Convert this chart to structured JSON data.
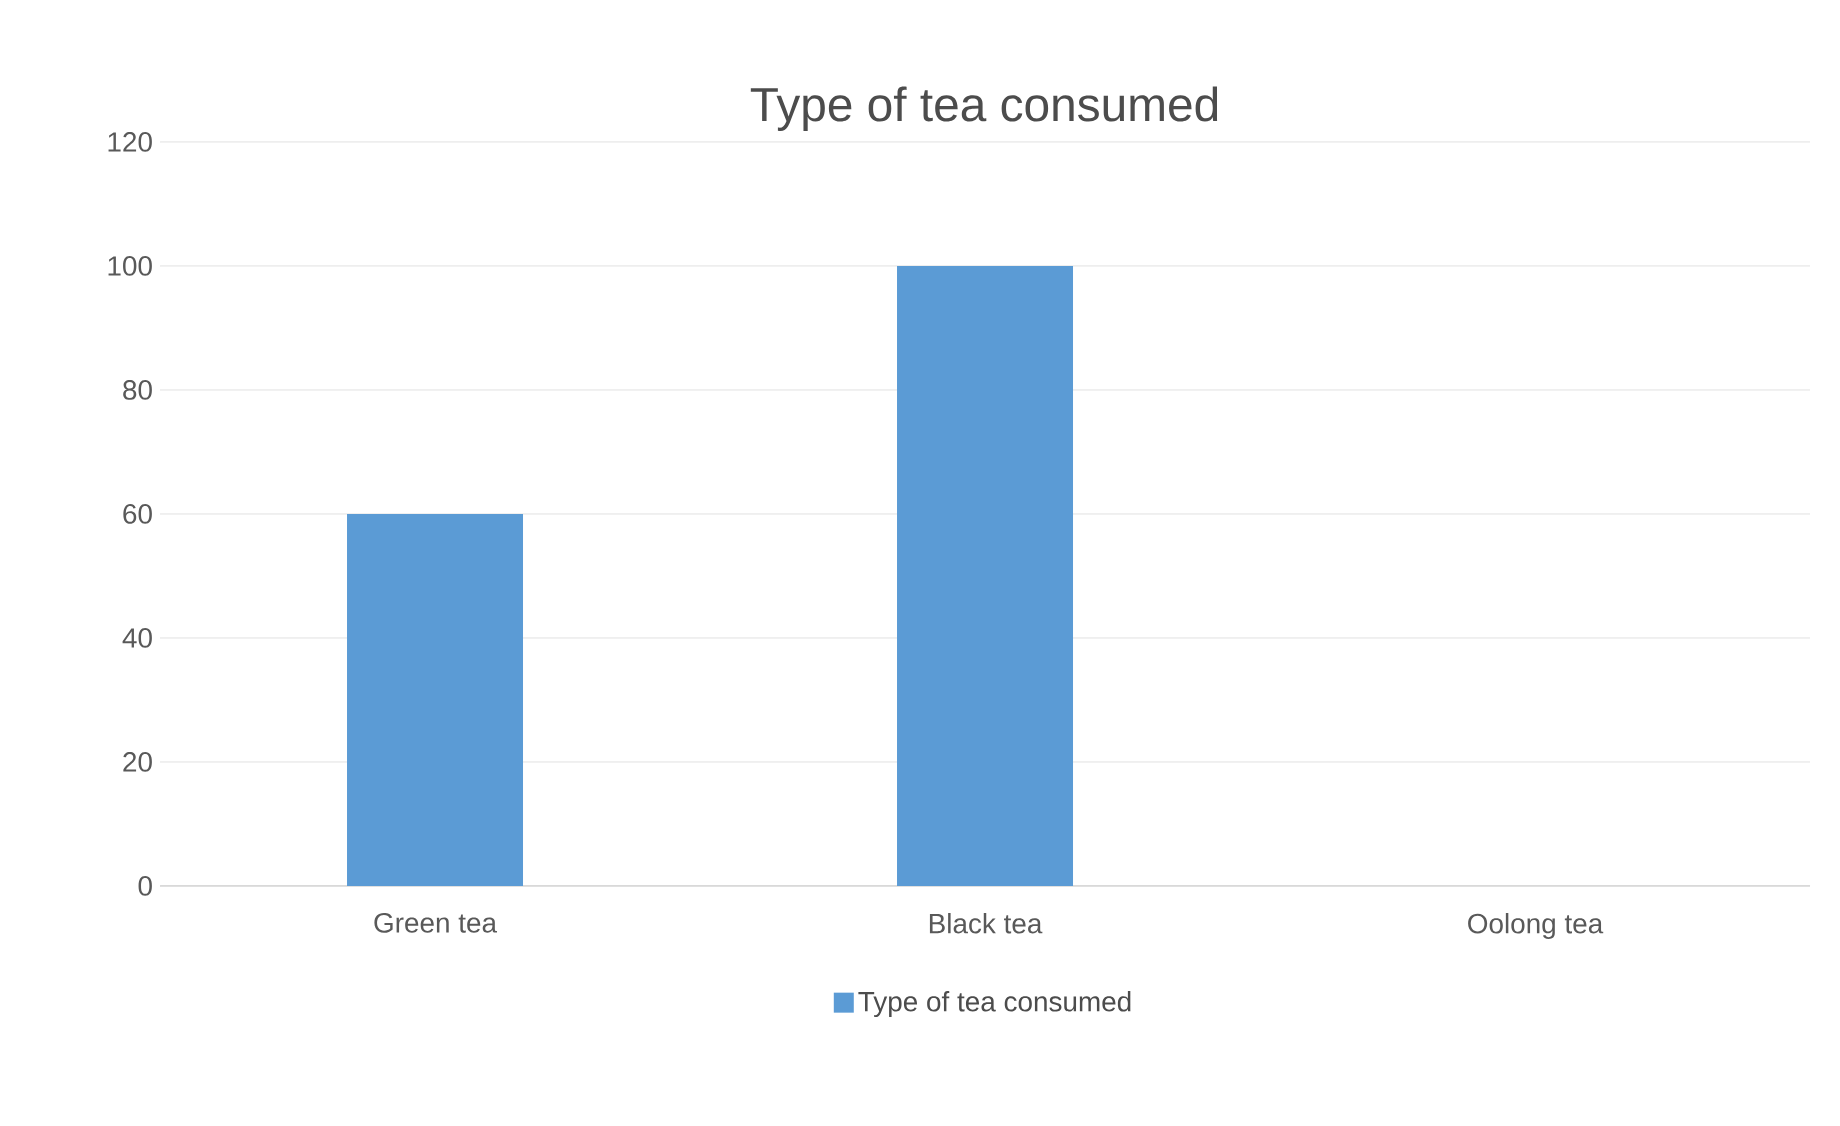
{
  "chart_data": {
    "type": "bar",
    "title": "Type of tea consumed",
    "categories": [
      "Green tea",
      "Black tea",
      "Oolong tea"
    ],
    "series": [
      {
        "name": "Type of tea consumed",
        "color": "#5b9bd5",
        "values": [
          60,
          100,
          0
        ]
      }
    ],
    "ylim": [
      0,
      120
    ],
    "yticks": [
      0,
      20,
      40,
      60,
      80,
      100,
      120
    ],
    "grid": "y",
    "legend": "bottom"
  }
}
